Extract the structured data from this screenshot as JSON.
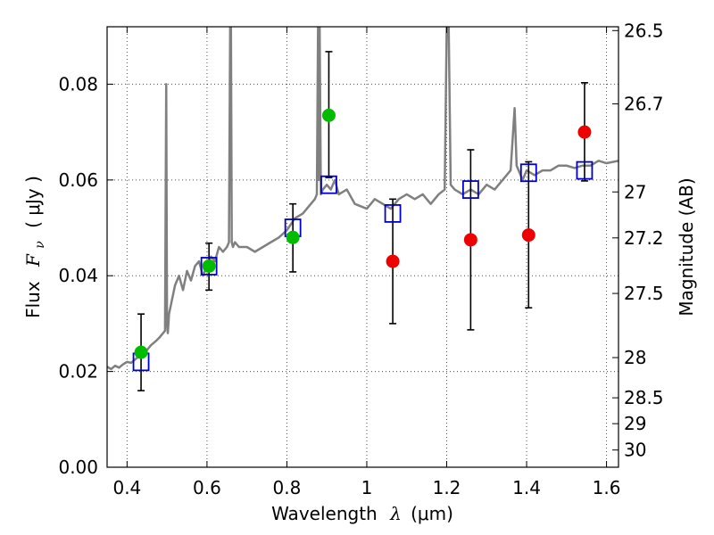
{
  "chart_data": {
    "type": "scatter",
    "xlabel_prefix": "Wavelength",
    "xlabel_symbol": "λ",
    "xlabel_unit": "(μm)",
    "ylabel_prefix": "Flux",
    "ylabel_symbol": "F",
    "ylabel_subscript": "ν",
    "ylabel_unit": "( μJy )",
    "y2label": "Magnitude (AB)",
    "xlim": [
      0.35,
      1.63
    ],
    "ylim": [
      0.0,
      0.092
    ],
    "xticks": [
      0.4,
      0.6,
      0.8,
      1.0,
      1.2,
      1.4,
      1.6
    ],
    "xtick_labels": [
      "0.4",
      "0.6",
      "0.8",
      "1",
      "1.2",
      "1.4",
      "1.6"
    ],
    "yticks": [
      0.0,
      0.02,
      0.04,
      0.06,
      0.08
    ],
    "ytick_labels": [
      "0.00",
      "0.02",
      "0.04",
      "0.06",
      "0.08"
    ],
    "mag_ticks": [
      {
        "label": "26.5",
        "flux": 0.0912
      },
      {
        "label": "26.7",
        "flux": 0.0759
      },
      {
        "label": "27",
        "flux": 0.0575
      },
      {
        "label": "27.2",
        "flux": 0.0479
      },
      {
        "label": "27.5",
        "flux": 0.0363
      },
      {
        "label": "28",
        "flux": 0.0229
      },
      {
        "label": "28.5",
        "flux": 0.0145
      },
      {
        "label": "29",
        "flux": 0.0091
      },
      {
        "label": "30",
        "flux": 0.0036
      }
    ],
    "grid": true,
    "colors": {
      "spectrum": "#808080",
      "model_points": "#0000cc",
      "green_points": "#00bb00",
      "red_points": "#ee0000",
      "errorbar": "#000000"
    },
    "series": [
      {
        "name": "Model spectrum",
        "style": "line",
        "x": [
          0.35,
          0.36,
          0.37,
          0.38,
          0.39,
          0.4,
          0.41,
          0.42,
          0.43,
          0.44,
          0.45,
          0.46,
          0.47,
          0.48,
          0.49,
          0.495,
          0.498,
          0.5,
          0.502,
          0.505,
          0.51,
          0.515,
          0.52,
          0.53,
          0.54,
          0.55,
          0.56,
          0.57,
          0.58,
          0.59,
          0.6,
          0.61,
          0.62,
          0.63,
          0.64,
          0.65,
          0.655,
          0.658,
          0.66,
          0.662,
          0.665,
          0.67,
          0.68,
          0.7,
          0.72,
          0.74,
          0.76,
          0.78,
          0.8,
          0.82,
          0.84,
          0.86,
          0.87,
          0.875,
          0.878,
          0.88,
          0.882,
          0.885,
          0.89,
          0.9,
          0.91,
          0.92,
          0.93,
          0.95,
          0.97,
          1.0,
          1.02,
          1.04,
          1.06,
          1.08,
          1.1,
          1.12,
          1.14,
          1.16,
          1.18,
          1.195,
          1.2,
          1.205,
          1.21,
          1.22,
          1.24,
          1.26,
          1.28,
          1.3,
          1.32,
          1.34,
          1.36,
          1.37,
          1.375,
          1.38,
          1.39,
          1.4,
          1.42,
          1.44,
          1.46,
          1.48,
          1.5,
          1.52,
          1.54,
          1.56,
          1.58,
          1.6,
          1.63
        ],
        "y": [
          0.021,
          0.0205,
          0.0212,
          0.0208,
          0.0215,
          0.022,
          0.0218,
          0.0225,
          0.0232,
          0.024,
          0.0245,
          0.0255,
          0.0262,
          0.027,
          0.028,
          0.0285,
          0.08,
          0.03,
          0.028,
          0.032,
          0.034,
          0.036,
          0.038,
          0.04,
          0.037,
          0.041,
          0.039,
          0.042,
          0.043,
          0.04,
          0.042,
          0.044,
          0.043,
          0.046,
          0.045,
          0.046,
          0.047,
          0.092,
          0.092,
          0.047,
          0.046,
          0.047,
          0.046,
          0.046,
          0.045,
          0.046,
          0.047,
          0.048,
          0.0495,
          0.052,
          0.053,
          0.055,
          0.056,
          0.057,
          0.092,
          0.06,
          0.092,
          0.057,
          0.058,
          0.059,
          0.058,
          0.06,
          0.057,
          0.058,
          0.055,
          0.054,
          0.056,
          0.055,
          0.054,
          0.056,
          0.057,
          0.056,
          0.057,
          0.055,
          0.057,
          0.058,
          0.092,
          0.092,
          0.059,
          0.058,
          0.057,
          0.058,
          0.057,
          0.059,
          0.058,
          0.06,
          0.062,
          0.075,
          0.063,
          0.062,
          0.06,
          0.062,
          0.061,
          0.062,
          0.062,
          0.063,
          0.063,
          0.0625,
          0.063,
          0.063,
          0.064,
          0.0635,
          0.064
        ]
      },
      {
        "name": "Model photometry",
        "style": "open-square",
        "x": [
          0.435,
          0.605,
          0.815,
          0.905,
          1.065,
          1.26,
          1.405,
          1.545
        ],
        "y": [
          0.022,
          0.042,
          0.05,
          0.059,
          0.053,
          0.058,
          0.0615,
          0.062
        ]
      },
      {
        "name": "Detections (green)",
        "style": "filled-circle",
        "x": [
          0.435,
          0.605,
          0.815,
          0.905
        ],
        "y": [
          0.024,
          0.042,
          0.048,
          0.0735
        ],
        "yerr_low": [
          0.016,
          0.037,
          0.0408,
          0.0605
        ],
        "yerr_high": [
          0.032,
          0.0468,
          0.055,
          0.0868
        ]
      },
      {
        "name": "Detections (red)",
        "style": "filled-circle",
        "x": [
          1.065,
          1.26,
          1.405,
          1.545
        ],
        "y": [
          0.043,
          0.0475,
          0.0485,
          0.07
        ],
        "yerr_low": [
          0.03,
          0.0287,
          0.0333,
          0.0598
        ],
        "yerr_high": [
          0.056,
          0.0663,
          0.0638,
          0.0803
        ]
      }
    ]
  }
}
